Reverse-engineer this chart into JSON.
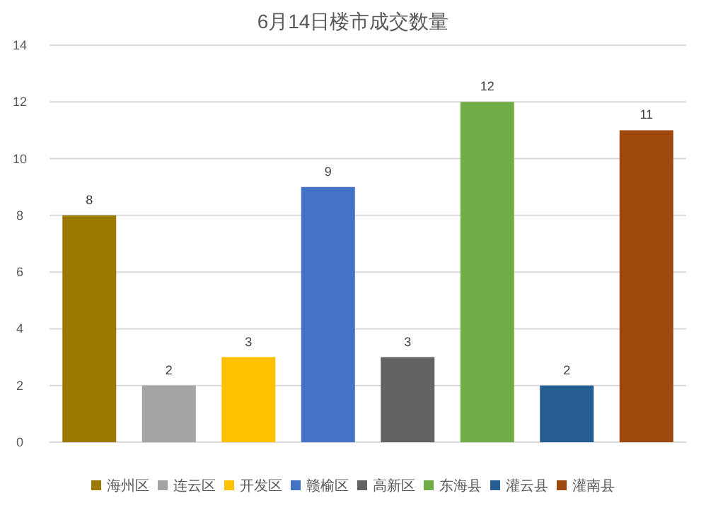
{
  "chart_data": {
    "type": "bar",
    "title": "6月14日楼市成交数量",
    "categories": [
      null,
      null,
      null,
      null,
      null,
      null,
      null,
      null
    ],
    "series": [
      {
        "name": "海州区",
        "color": "#9c7a00",
        "values": [
          8,
          null,
          null,
          null,
          null,
          null,
          null,
          null
        ]
      },
      {
        "name": "连云区",
        "color": "#a5a5a5",
        "values": [
          null,
          2,
          null,
          null,
          null,
          null,
          null,
          null
        ]
      },
      {
        "name": "开发区",
        "color": "#ffc000",
        "values": [
          null,
          null,
          3,
          null,
          null,
          null,
          null,
          null
        ]
      },
      {
        "name": "赣榆区",
        "color": "#4472c4",
        "values": [
          null,
          null,
          null,
          9,
          null,
          null,
          null,
          null
        ]
      },
      {
        "name": "高新区",
        "color": "#636363",
        "values": [
          null,
          null,
          null,
          null,
          3,
          null,
          null,
          null
        ]
      },
      {
        "name": "东海县",
        "color": "#70ad47",
        "values": [
          null,
          null,
          null,
          null,
          null,
          12,
          null,
          null
        ]
      },
      {
        "name": "灌云县",
        "color": "#255e91",
        "values": [
          null,
          null,
          null,
          null,
          null,
          null,
          2,
          null
        ]
      },
      {
        "name": "灌南县",
        "color": "#9e480e",
        "values": [
          null,
          null,
          null,
          null,
          null,
          null,
          null,
          11
        ]
      }
    ],
    "ylim": [
      0,
      14
    ],
    "yticks": [
      0,
      2,
      4,
      6,
      8,
      10,
      12,
      14
    ],
    "grid": "y",
    "legend": "bottom",
    "tick_labels": "y",
    "data_labels": true
  }
}
